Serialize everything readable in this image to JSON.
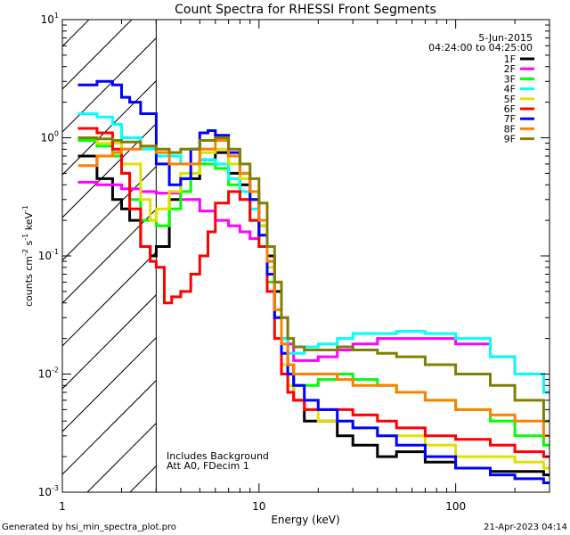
{
  "chart_data": {
    "type": "line",
    "title": "Count Spectra for RHESSI Front Segments",
    "xlabel": "Energy (keV)",
    "ylabel": "counts cm-2 s-1 keV-1",
    "xscale": "log",
    "yscale": "log",
    "xlim": [
      1,
      300
    ],
    "ylim": [
      0.001,
      10
    ],
    "x_ticks": [
      {
        "value": 1,
        "label": "1"
      },
      {
        "value": 10,
        "label": "10"
      },
      {
        "value": 100,
        "label": "100"
      }
    ],
    "y_ticks": [
      {
        "value": 0.001,
        "base": "10",
        "exp": "-3"
      },
      {
        "value": 0.01,
        "base": "10",
        "exp": "-2"
      },
      {
        "value": 0.1,
        "base": "10",
        "exp": "-1"
      },
      {
        "value": 1,
        "base": "10",
        "exp": "0"
      },
      {
        "value": 10,
        "base": "10",
        "exp": "1"
      }
    ],
    "hatched_region": {
      "xmin": 1,
      "xmax": 3
    },
    "legend": {
      "date": "5-Jun-2015",
      "time_range": "04:24:00 to 04:25:00"
    },
    "annotations": [
      "Includes Background",
      "Att A0, FDecim 1"
    ],
    "series": [
      {
        "name": "1F",
        "color": "#000000",
        "x": [
          1.2,
          1.5,
          1.8,
          2,
          2.2,
          2.5,
          2.8,
          3,
          3.5,
          4,
          5,
          6,
          7,
          8,
          9,
          10,
          11,
          12,
          13,
          14,
          15,
          17,
          20,
          25,
          30,
          40,
          50,
          70,
          100,
          150,
          200,
          280
        ],
        "y": [
          0.7,
          0.45,
          0.3,
          0.25,
          0.2,
          0.12,
          0.1,
          0.12,
          0.3,
          0.45,
          0.65,
          0.75,
          0.5,
          0.4,
          0.3,
          0.18,
          0.1,
          0.05,
          0.02,
          0.012,
          0.006,
          0.004,
          0.004,
          0.003,
          0.0025,
          0.002,
          0.0022,
          0.0018,
          0.0016,
          0.0015,
          0.0015,
          0.0014
        ]
      },
      {
        "name": "2F",
        "color": "#ff00ff",
        "x": [
          1.2,
          1.5,
          2,
          2.5,
          3,
          4,
          5,
          6,
          7,
          8,
          9,
          10,
          11,
          12,
          13,
          14,
          15,
          17,
          20,
          25,
          30,
          40,
          50,
          70,
          100,
          150,
          200,
          280
        ],
        "y": [
          0.42,
          0.4,
          0.37,
          0.35,
          0.34,
          0.3,
          0.24,
          0.2,
          0.18,
          0.16,
          0.14,
          0.12,
          0.09,
          0.06,
          0.03,
          0.018,
          0.013,
          0.013,
          0.014,
          0.016,
          0.018,
          0.02,
          0.02,
          0.02,
          0.018,
          0.014,
          0.01,
          0.007
        ]
      },
      {
        "name": "3F",
        "color": "#00ff00",
        "x": [
          1.2,
          1.5,
          1.8,
          2,
          2.2,
          2.5,
          3,
          3.5,
          4,
          4.5,
          5,
          6,
          7,
          8,
          9,
          10,
          11,
          12,
          13,
          14,
          15,
          17,
          20,
          25,
          30,
          40,
          50,
          70,
          100,
          150,
          200,
          280
        ],
        "y": [
          0.95,
          0.85,
          0.7,
          0.5,
          0.3,
          0.2,
          0.18,
          0.25,
          0.35,
          0.5,
          0.6,
          0.55,
          0.4,
          0.3,
          0.2,
          0.12,
          0.06,
          0.03,
          0.015,
          0.01,
          0.008,
          0.008,
          0.009,
          0.01,
          0.009,
          0.008,
          0.007,
          0.006,
          0.005,
          0.004,
          0.003,
          0.0025
        ]
      },
      {
        "name": "4F",
        "color": "#00ffff",
        "x": [
          1.2,
          1.5,
          1.8,
          2,
          2.5,
          3,
          4,
          5,
          6,
          7,
          8,
          9,
          10,
          11,
          12,
          13,
          14,
          15,
          17,
          20,
          25,
          30,
          40,
          50,
          70,
          100,
          150,
          200,
          280
        ],
        "y": [
          1.6,
          1.5,
          1.3,
          1.0,
          0.8,
          0.7,
          0.6,
          0.65,
          0.6,
          0.45,
          0.35,
          0.25,
          0.15,
          0.07,
          0.035,
          0.02,
          0.015,
          0.015,
          0.017,
          0.018,
          0.02,
          0.022,
          0.022,
          0.023,
          0.022,
          0.02,
          0.014,
          0.01,
          0.007
        ]
      },
      {
        "name": "5F",
        "color": "#e0e000",
        "x": [
          1.2,
          1.5,
          2,
          2.5,
          2.8,
          3,
          3.5,
          4,
          5,
          6,
          7,
          8,
          9,
          10,
          11,
          12,
          13,
          14,
          15,
          17,
          20,
          25,
          30,
          40,
          50,
          70,
          100,
          150,
          200,
          280
        ],
        "y": [
          1.0,
          0.9,
          0.6,
          0.3,
          0.2,
          0.25,
          0.35,
          0.5,
          0.75,
          0.8,
          0.6,
          0.45,
          0.3,
          0.18,
          0.08,
          0.03,
          0.012,
          0.008,
          0.006,
          0.005,
          0.004,
          0.004,
          0.0035,
          0.003,
          0.003,
          0.0025,
          0.002,
          0.002,
          0.0018,
          0.0016
        ]
      },
      {
        "name": "6F",
        "color": "#ff0000",
        "x": [
          1.2,
          1.5,
          1.8,
          2,
          2.2,
          2.5,
          2.8,
          3,
          3.3,
          3.6,
          4,
          4.5,
          5,
          5.5,
          6,
          7,
          8,
          9,
          10,
          11,
          12,
          13,
          14,
          15,
          17,
          20,
          25,
          30,
          40,
          50,
          70,
          100,
          150,
          200,
          280
        ],
        "y": [
          1.2,
          1.1,
          0.8,
          0.5,
          0.25,
          0.12,
          0.09,
          0.08,
          0.04,
          0.045,
          0.05,
          0.07,
          0.1,
          0.16,
          0.28,
          0.35,
          0.3,
          0.2,
          0.12,
          0.05,
          0.02,
          0.01,
          0.007,
          0.006,
          0.005,
          0.005,
          0.005,
          0.0045,
          0.004,
          0.0035,
          0.003,
          0.0028,
          0.0025,
          0.0022,
          0.002
        ]
      },
      {
        "name": "7F",
        "color": "#0000ff",
        "x": [
          1.2,
          1.5,
          1.8,
          2,
          2.2,
          2.5,
          3,
          3.5,
          4,
          4.5,
          5,
          5.5,
          6,
          7,
          8,
          9,
          10,
          11,
          12,
          13,
          14,
          15,
          17,
          20,
          25,
          30,
          40,
          50,
          70,
          100,
          150,
          200,
          280
        ],
        "y": [
          2.8,
          3.0,
          2.8,
          2.2,
          2.0,
          1.6,
          0.6,
          0.4,
          0.45,
          0.8,
          1.1,
          1.15,
          1.05,
          0.75,
          0.5,
          0.3,
          0.15,
          0.07,
          0.03,
          0.015,
          0.01,
          0.008,
          0.006,
          0.005,
          0.004,
          0.0035,
          0.003,
          0.0025,
          0.002,
          0.0016,
          0.0014,
          0.0013,
          0.0012
        ]
      },
      {
        "name": "8F",
        "color": "#ff8000",
        "x": [
          1.2,
          1.5,
          1.8,
          2,
          2.5,
          3,
          3.5,
          4,
          5,
          6,
          7,
          8,
          9,
          10,
          11,
          12,
          13,
          14,
          15,
          17,
          20,
          25,
          30,
          40,
          50,
          70,
          100,
          150,
          200,
          280
        ],
        "y": [
          0.58,
          0.7,
          0.75,
          0.8,
          0.85,
          0.75,
          0.6,
          0.6,
          0.8,
          0.95,
          0.7,
          0.5,
          0.35,
          0.2,
          0.09,
          0.035,
          0.018,
          0.012,
          0.01,
          0.01,
          0.01,
          0.009,
          0.008,
          0.008,
          0.007,
          0.006,
          0.005,
          0.0045,
          0.004,
          0.003
        ]
      },
      {
        "name": "9F",
        "color": "#808000",
        "x": [
          1.2,
          1.5,
          1.8,
          2,
          2.5,
          3,
          3.5,
          4,
          5,
          6,
          7,
          8,
          9,
          10,
          11,
          12,
          13,
          14,
          15,
          17,
          20,
          25,
          30,
          40,
          50,
          70,
          100,
          150,
          200,
          280
        ],
        "y": [
          1.0,
          0.98,
          0.95,
          0.92,
          0.85,
          0.8,
          0.75,
          0.8,
          0.95,
          1.0,
          0.8,
          0.6,
          0.45,
          0.28,
          0.12,
          0.06,
          0.03,
          0.02,
          0.017,
          0.016,
          0.016,
          0.017,
          0.016,
          0.015,
          0.014,
          0.012,
          0.01,
          0.008,
          0.006,
          0.004
        ]
      }
    ]
  },
  "footer": {
    "generated_by": "Generated by hsi_min_spectra_plot.pro",
    "timestamp": "21-Apr-2023 04:14"
  }
}
